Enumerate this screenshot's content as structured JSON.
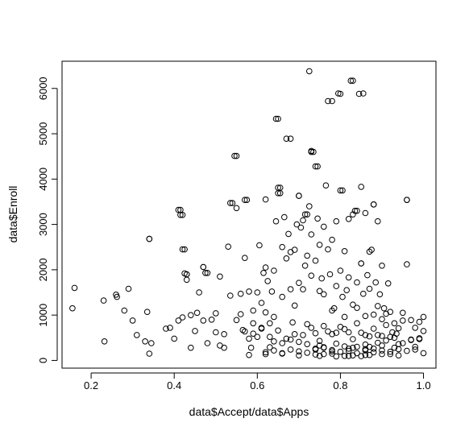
{
  "chart_data": {
    "type": "scatter",
    "title": "",
    "xlabel": "data$Accept/data$Apps",
    "ylabel": "data$Enroll",
    "xlim": [
      0.13,
      1.03
    ],
    "ylim": [
      -170,
      6600
    ],
    "xticks": [
      0.2,
      0.4,
      0.6,
      0.8,
      1.0
    ],
    "xtick_labels": [
      "0.2",
      "0.4",
      "0.6",
      "0.8",
      "1.0"
    ],
    "yticks": [
      0,
      1000,
      2000,
      3000,
      4000,
      5000,
      6000
    ],
    "ytick_labels": [
      "0",
      "1000",
      "2000",
      "3000",
      "4000",
      "5000",
      "6000"
    ],
    "grid": false,
    "legend": "none",
    "marker": "open-circle",
    "marker_color": "#000000",
    "series": [
      {
        "x": [
          0.155,
          0.16,
          0.23,
          0.232,
          0.26,
          0.262,
          0.28,
          0.29,
          0.3,
          0.31,
          0.33,
          0.335,
          0.34,
          0.345,
          0.34,
          0.38,
          0.39,
          0.4,
          0.41,
          0.41,
          0.415,
          0.42,
          0.42,
          0.425,
          0.43,
          0.43,
          0.44,
          0.44,
          0.45,
          0.455,
          0.46,
          0.47,
          0.47,
          0.48,
          0.48,
          0.49,
          0.5,
          0.5,
          0.51,
          0.51,
          0.52,
          0.52,
          0.53,
          0.535,
          0.54,
          0.545,
          0.55,
          0.55,
          0.56,
          0.56,
          0.565,
          0.57,
          0.575,
          0.58,
          0.58,
          0.585,
          0.59,
          0.59,
          0.6,
          0.6,
          0.605,
          0.61,
          0.61,
          0.615,
          0.62,
          0.62,
          0.625,
          0.63,
          0.63,
          0.635,
          0.64,
          0.64,
          0.645,
          0.65,
          0.65,
          0.655,
          0.66,
          0.66,
          0.665,
          0.67,
          0.67,
          0.675,
          0.68,
          0.68,
          0.685,
          0.69,
          0.69,
          0.695,
          0.7,
          0.7,
          0.705,
          0.71,
          0.71,
          0.715,
          0.72,
          0.72,
          0.725,
          0.73,
          0.73,
          0.735,
          0.74,
          0.74,
          0.745,
          0.75,
          0.75,
          0.755,
          0.76,
          0.76,
          0.765,
          0.77,
          0.77,
          0.775,
          0.78,
          0.78,
          0.785,
          0.79,
          0.79,
          0.795,
          0.8,
          0.8,
          0.805,
          0.81,
          0.81,
          0.815,
          0.82,
          0.82,
          0.825,
          0.83,
          0.83,
          0.835,
          0.84,
          0.84,
          0.845,
          0.85,
          0.85,
          0.855,
          0.86,
          0.86,
          0.865,
          0.87,
          0.87,
          0.875,
          0.88,
          0.88,
          0.885,
          0.89,
          0.89,
          0.895,
          0.9,
          0.9,
          0.905,
          0.91,
          0.91,
          0.915,
          0.92,
          0.92,
          0.925,
          0.93,
          0.93,
          0.935,
          0.94,
          0.94,
          0.95,
          0.95,
          0.96,
          0.96,
          0.97,
          0.97,
          0.98,
          0.98,
          0.99,
          0.99,
          1.0,
          1.0,
          1.0,
          0.725,
          0.83,
          0.78,
          0.855,
          0.8,
          0.645,
          0.68,
          0.73,
          0.73,
          0.745,
          0.55,
          0.65,
          0.655,
          0.535,
          0.62,
          0.57,
          0.34,
          0.415,
          0.42,
          0.425,
          0.43,
          0.475,
          0.47,
          0.85,
          0.84,
          0.88,
          0.96,
          0.7,
          0.715,
          0.805,
          0.7,
          0.72,
          0.75,
          0.76,
          0.79,
          0.81,
          0.83,
          0.86,
          0.87,
          0.89,
          0.9,
          0.64,
          0.66,
          0.68,
          0.74,
          0.76,
          0.78,
          0.82,
          0.84,
          0.86,
          0.88,
          0.92,
          0.94,
          0.96,
          0.98,
          0.62,
          0.64,
          0.66,
          0.68,
          0.7,
          0.72,
          0.74,
          0.76,
          0.78,
          0.8,
          0.82,
          0.84,
          0.86,
          0.88,
          0.9,
          0.92,
          0.63,
          0.67,
          0.71,
          0.75,
          0.79,
          0.83,
          0.87,
          0.91,
          0.95,
          0.99,
          0.57,
          0.59,
          0.61,
          0.65,
          0.69,
          0.73,
          0.77,
          0.81,
          0.85,
          0.89,
          0.93,
          0.97,
          0.58,
          0.62,
          0.66,
          0.7,
          0.74,
          0.78,
          0.82,
          0.86,
          0.9,
          0.94,
          0.72,
          0.76,
          0.8,
          0.84,
          0.88,
          0.74,
          0.78,
          0.82,
          0.86,
          0.9,
          0.75,
          0.79,
          0.83,
          0.87,
          0.81,
          0.85
        ],
        "y": [
          1150,
          1600,
          1320,
          420,
          1450,
          1400,
          1100,
          1580,
          880,
          560,
          420,
          1070,
          150,
          380,
          2680,
          700,
          720,
          480,
          880,
          3320,
          3210,
          950,
          2450,
          1920,
          1900,
          1780,
          280,
          1000,
          650,
          1050,
          1500,
          880,
          2060,
          380,
          1930,
          900,
          1040,
          620,
          330,
          1850,
          580,
          280,
          2510,
          1430,
          3470,
          4510,
          3360,
          890,
          1020,
          1470,
          670,
          2260,
          3540,
          480,
          1520,
          280,
          1100,
          820,
          1500,
          520,
          2540,
          1270,
          720,
          1930,
          2050,
          1060,
          1750,
          820,
          290,
          1520,
          1980,
          960,
          3070,
          5330,
          3690,
          3810,
          2500,
          1400,
          3160,
          4890,
          2250,
          2790,
          1570,
          2390,
          840,
          2440,
          1210,
          3000,
          3630,
          1710,
          2930,
          3090,
          1570,
          2090,
          2310,
          3220,
          3400,
          2780,
          1870,
          4600,
          4280,
          2200,
          3130,
          1530,
          2550,
          1810,
          2950,
          1460,
          3860,
          5720,
          2450,
          1900,
          2660,
          1100,
          1150,
          3070,
          1640,
          5890,
          3750,
          1980,
          1400,
          2410,
          960,
          1550,
          3120,
          1830,
          6170,
          3220,
          1230,
          3300,
          1720,
          1160,
          5880,
          3830,
          2140,
          1470,
          3250,
          980,
          1880,
          2400,
          1580,
          2440,
          3440,
          1010,
          1720,
          3070,
          1200,
          1460,
          910,
          2090,
          1150,
          1030,
          780,
          1700,
          520,
          1070,
          620,
          820,
          280,
          590,
          360,
          710,
          880,
          1050,
          3540,
          2120,
          890,
          460,
          300,
          720,
          850,
          470,
          160,
          960,
          650,
          6380,
          6170,
          5720,
          5890,
          5880,
          5330,
          4890,
          4620,
          4600,
          4280,
          4510,
          3810,
          3690,
          3470,
          3550,
          3540,
          2680,
          3320,
          3210,
          2450,
          1900,
          1930,
          2060,
          2140,
          3300,
          3440,
          3540,
          3630,
          3220,
          3750,
          410,
          360,
          330,
          290,
          370,
          310,
          280,
          350,
          300,
          390,
          330,
          420,
          380,
          460,
          240,
          280,
          200,
          260,
          300,
          220,
          260,
          190,
          250,
          210,
          240,
          180,
          220,
          150,
          240,
          200,
          170,
          260,
          140,
          230,
          190,
          210,
          160,
          250,
          180,
          220,
          140,
          520,
          480,
          560,
          430,
          610,
          470,
          530,
          440,
          380,
          490,
          640,
          590,
          700,
          660,
          580,
          720,
          640,
          690,
          610,
          560,
          500,
          450,
          120,
          140,
          160,
          110,
          130,
          150,
          100,
          120,
          140,
          110,
          800,
          760,
          740,
          820,
          700,
          600,
          580,
          620,
          560,
          540,
          100,
          90,
          110,
          120,
          100,
          95
        ]
      }
    ]
  }
}
